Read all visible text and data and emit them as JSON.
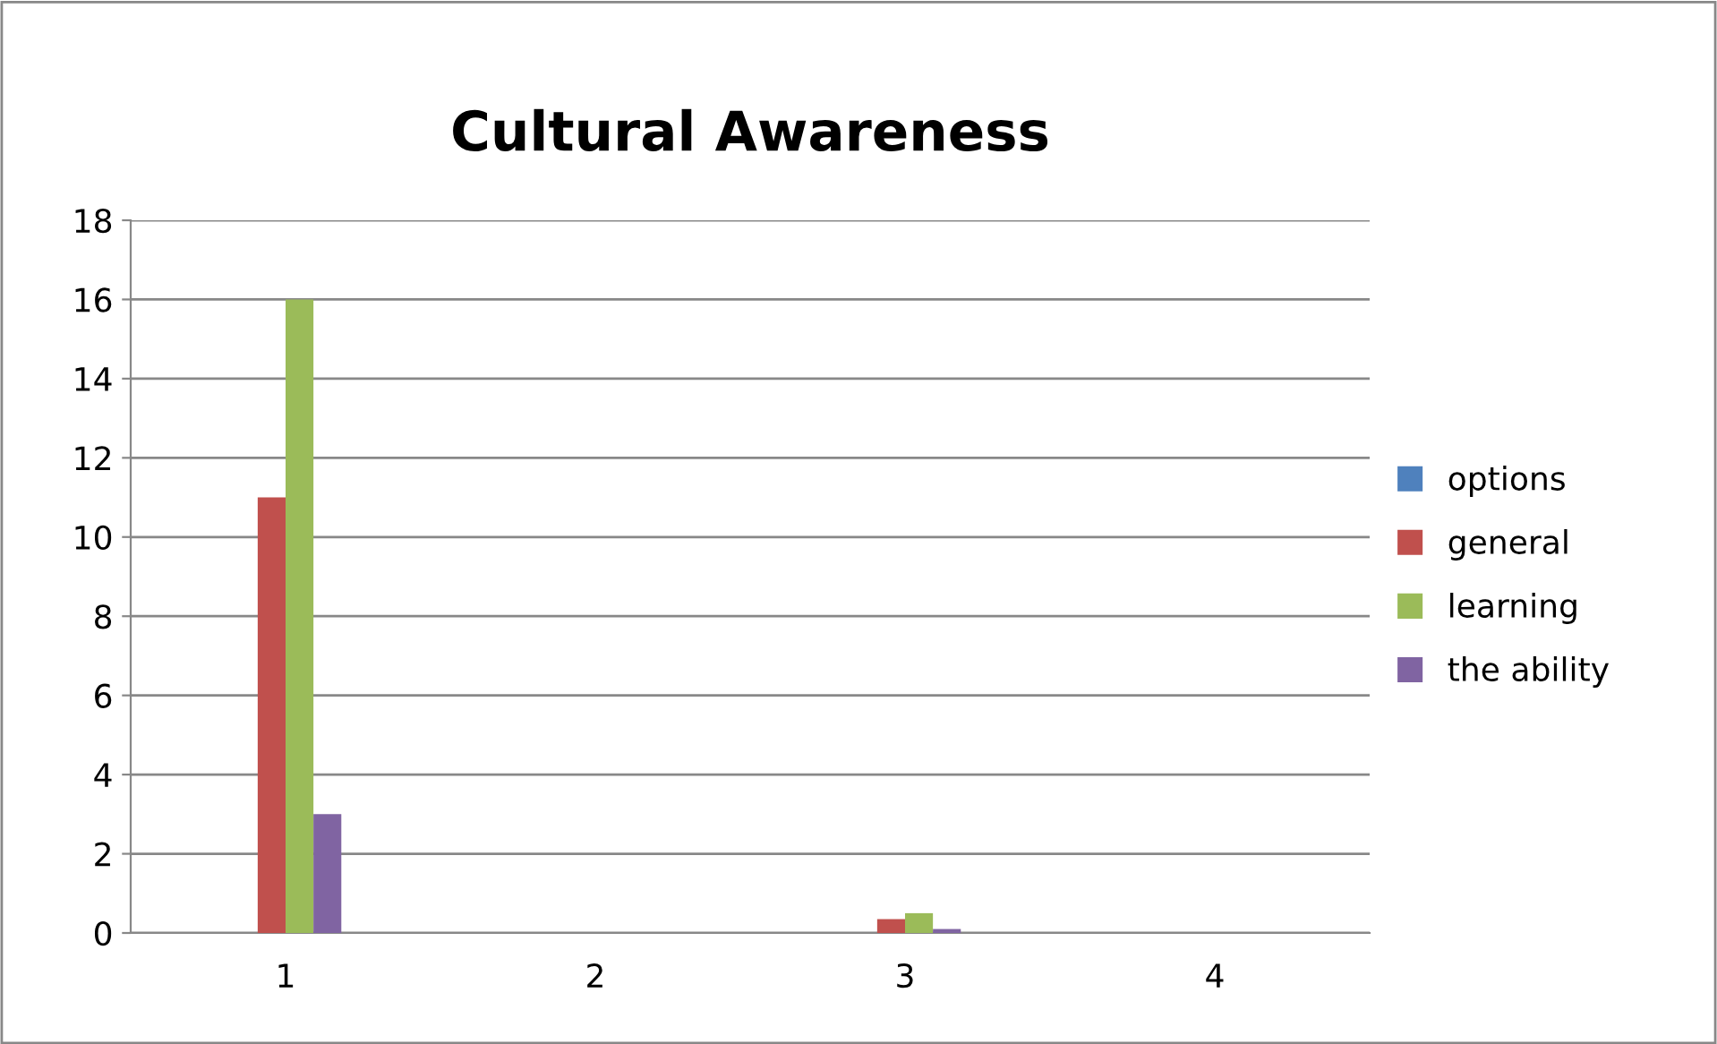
{
  "chart_data": {
    "type": "bar",
    "title": "Cultural Awareness",
    "categories": [
      "1",
      "2",
      "3",
      "4"
    ],
    "series": [
      {
        "name": "options",
        "color": "#4f81bd",
        "values": [
          0,
          0,
          0,
          0
        ]
      },
      {
        "name": "general",
        "color": "#c0504d",
        "values": [
          11,
          0,
          0.35,
          0
        ]
      },
      {
        "name": "learning",
        "color": "#9bbb59",
        "values": [
          16,
          0,
          0.5,
          0
        ]
      },
      {
        "name": "the ability",
        "color": "#8064a2",
        "values": [
          3,
          0,
          0.1,
          0
        ]
      }
    ],
    "ylim": [
      0,
      18
    ],
    "yticks": [
      0,
      2,
      4,
      6,
      8,
      10,
      12,
      14,
      16,
      18
    ],
    "grid": "y",
    "legend": "right"
  }
}
